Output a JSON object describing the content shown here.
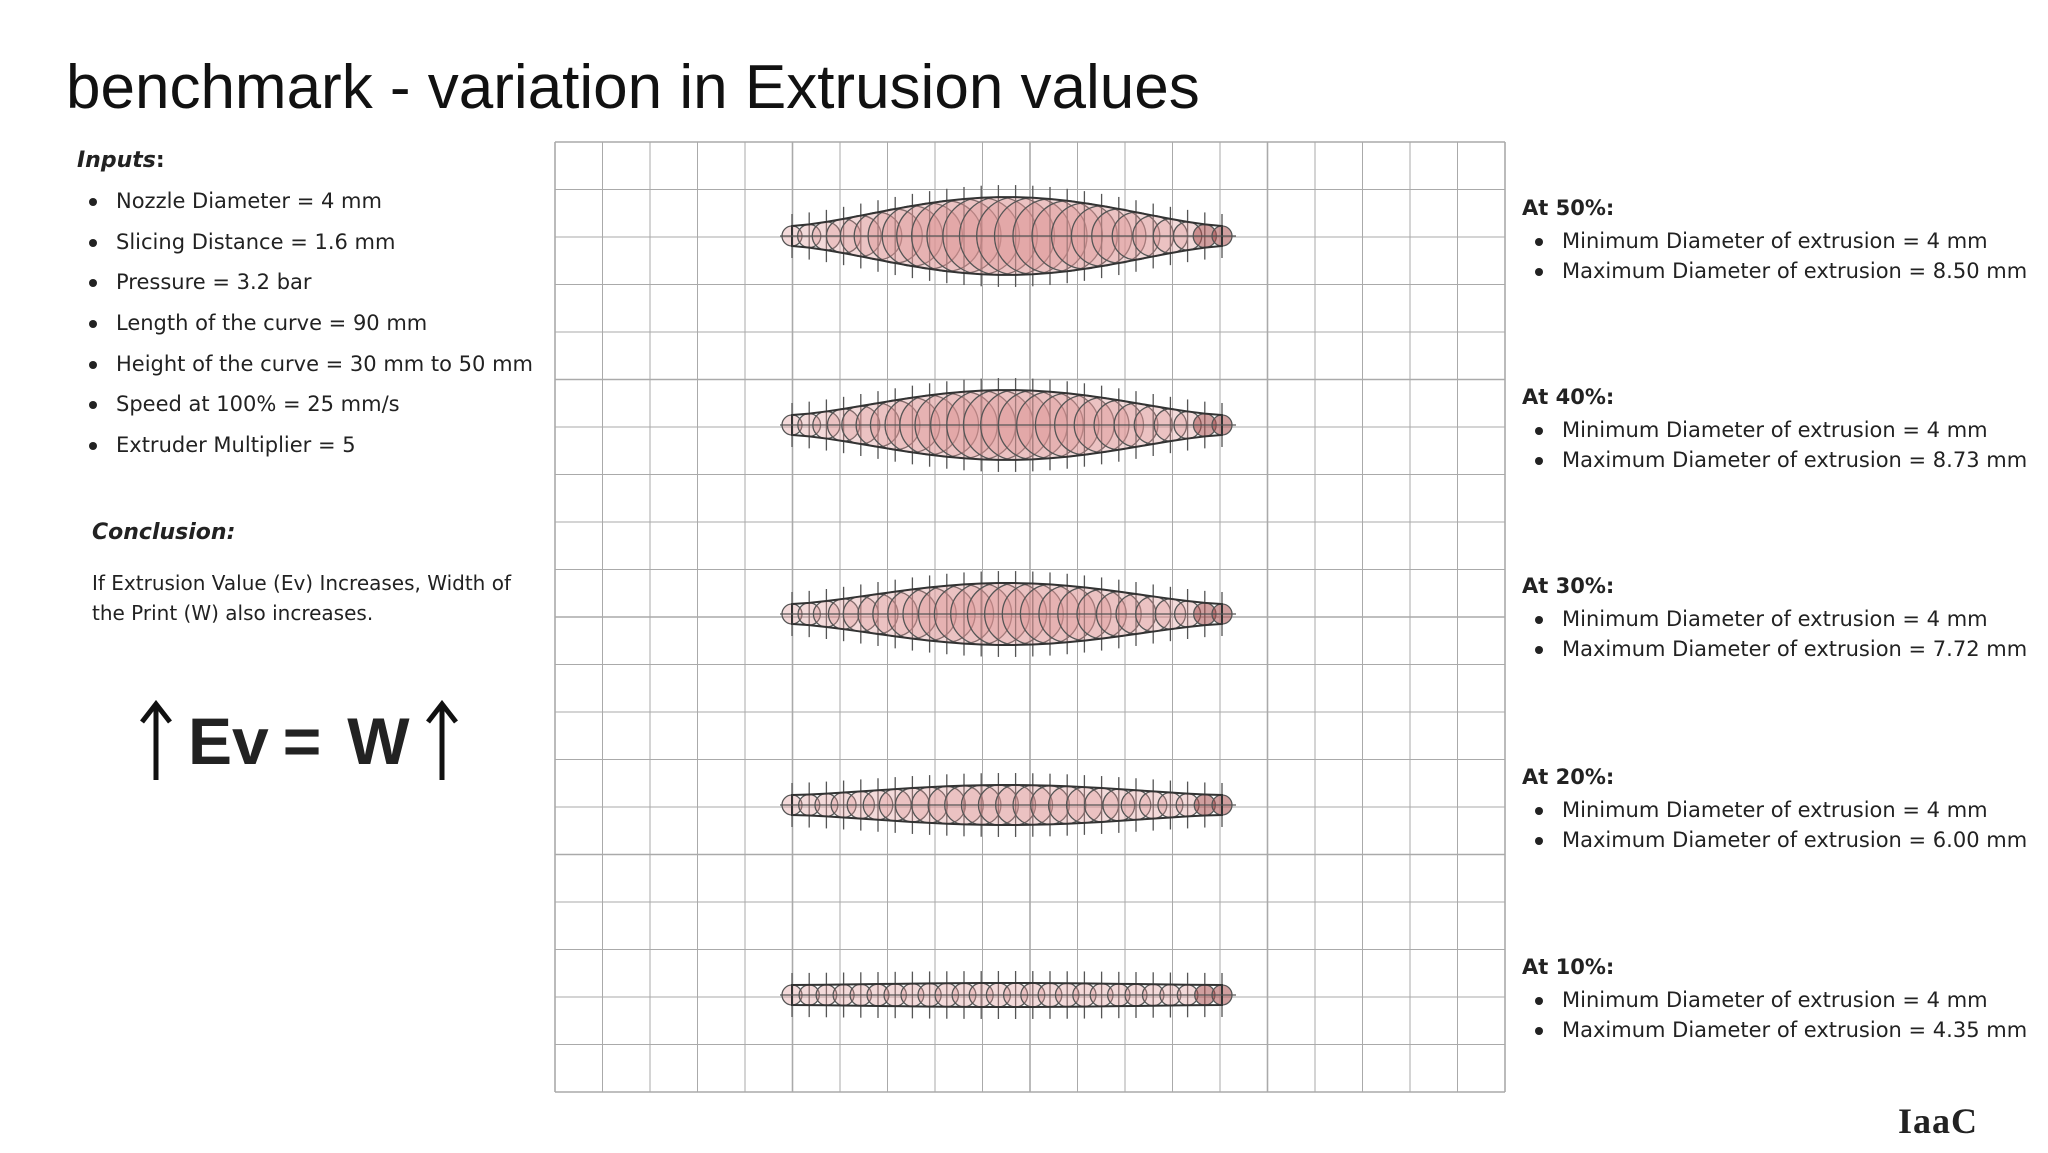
{
  "header": {
    "title": "benchmark - variation in Extrusion values"
  },
  "inputs": {
    "heading": "Inputs",
    "items": [
      "Nozzle Diameter = 4 mm",
      "Slicing Distance = 1.6 mm",
      "Pressure = 3.2 bar",
      "Length of the curve = 90 mm",
      "Height of the curve = 30 mm to 50 mm",
      "Speed at 100% = 25 mm/s",
      "Extruder Multiplier = 5"
    ]
  },
  "conclusion": {
    "heading": "Conclusion:",
    "text": "If Extrusion Value (Ev) Increases, Width of the Print (W) also increases.",
    "formula": {
      "left": "Ev",
      "equals": "=",
      "right": "W"
    }
  },
  "results": [
    {
      "heading": "At 50%:",
      "items": [
        "Minimum Diameter of extrusion = 4 mm",
        "Maximum Diameter of extrusion = 8.50 mm"
      ]
    },
    {
      "heading": "At 40%:",
      "items": [
        "Minimum Diameter of extrusion = 4 mm",
        "Maximum Diameter of extrusion = 8.73 mm"
      ]
    },
    {
      "heading": "At 30%:",
      "items": [
        "Minimum Diameter of extrusion = 4 mm",
        "Maximum Diameter of extrusion = 7.72 mm"
      ]
    },
    {
      "heading": "At 20%:",
      "items": [
        "Minimum Diameter of extrusion = 4 mm",
        "Maximum Diameter of extrusion = 6.00 mm"
      ]
    },
    {
      "heading": "At 10%:",
      "items": [
        "Minimum Diameter of extrusion = 4 mm",
        "Maximum Diameter of extrusion = 4.35 mm"
      ]
    }
  ],
  "footer": {
    "logo": "IaaC"
  }
}
